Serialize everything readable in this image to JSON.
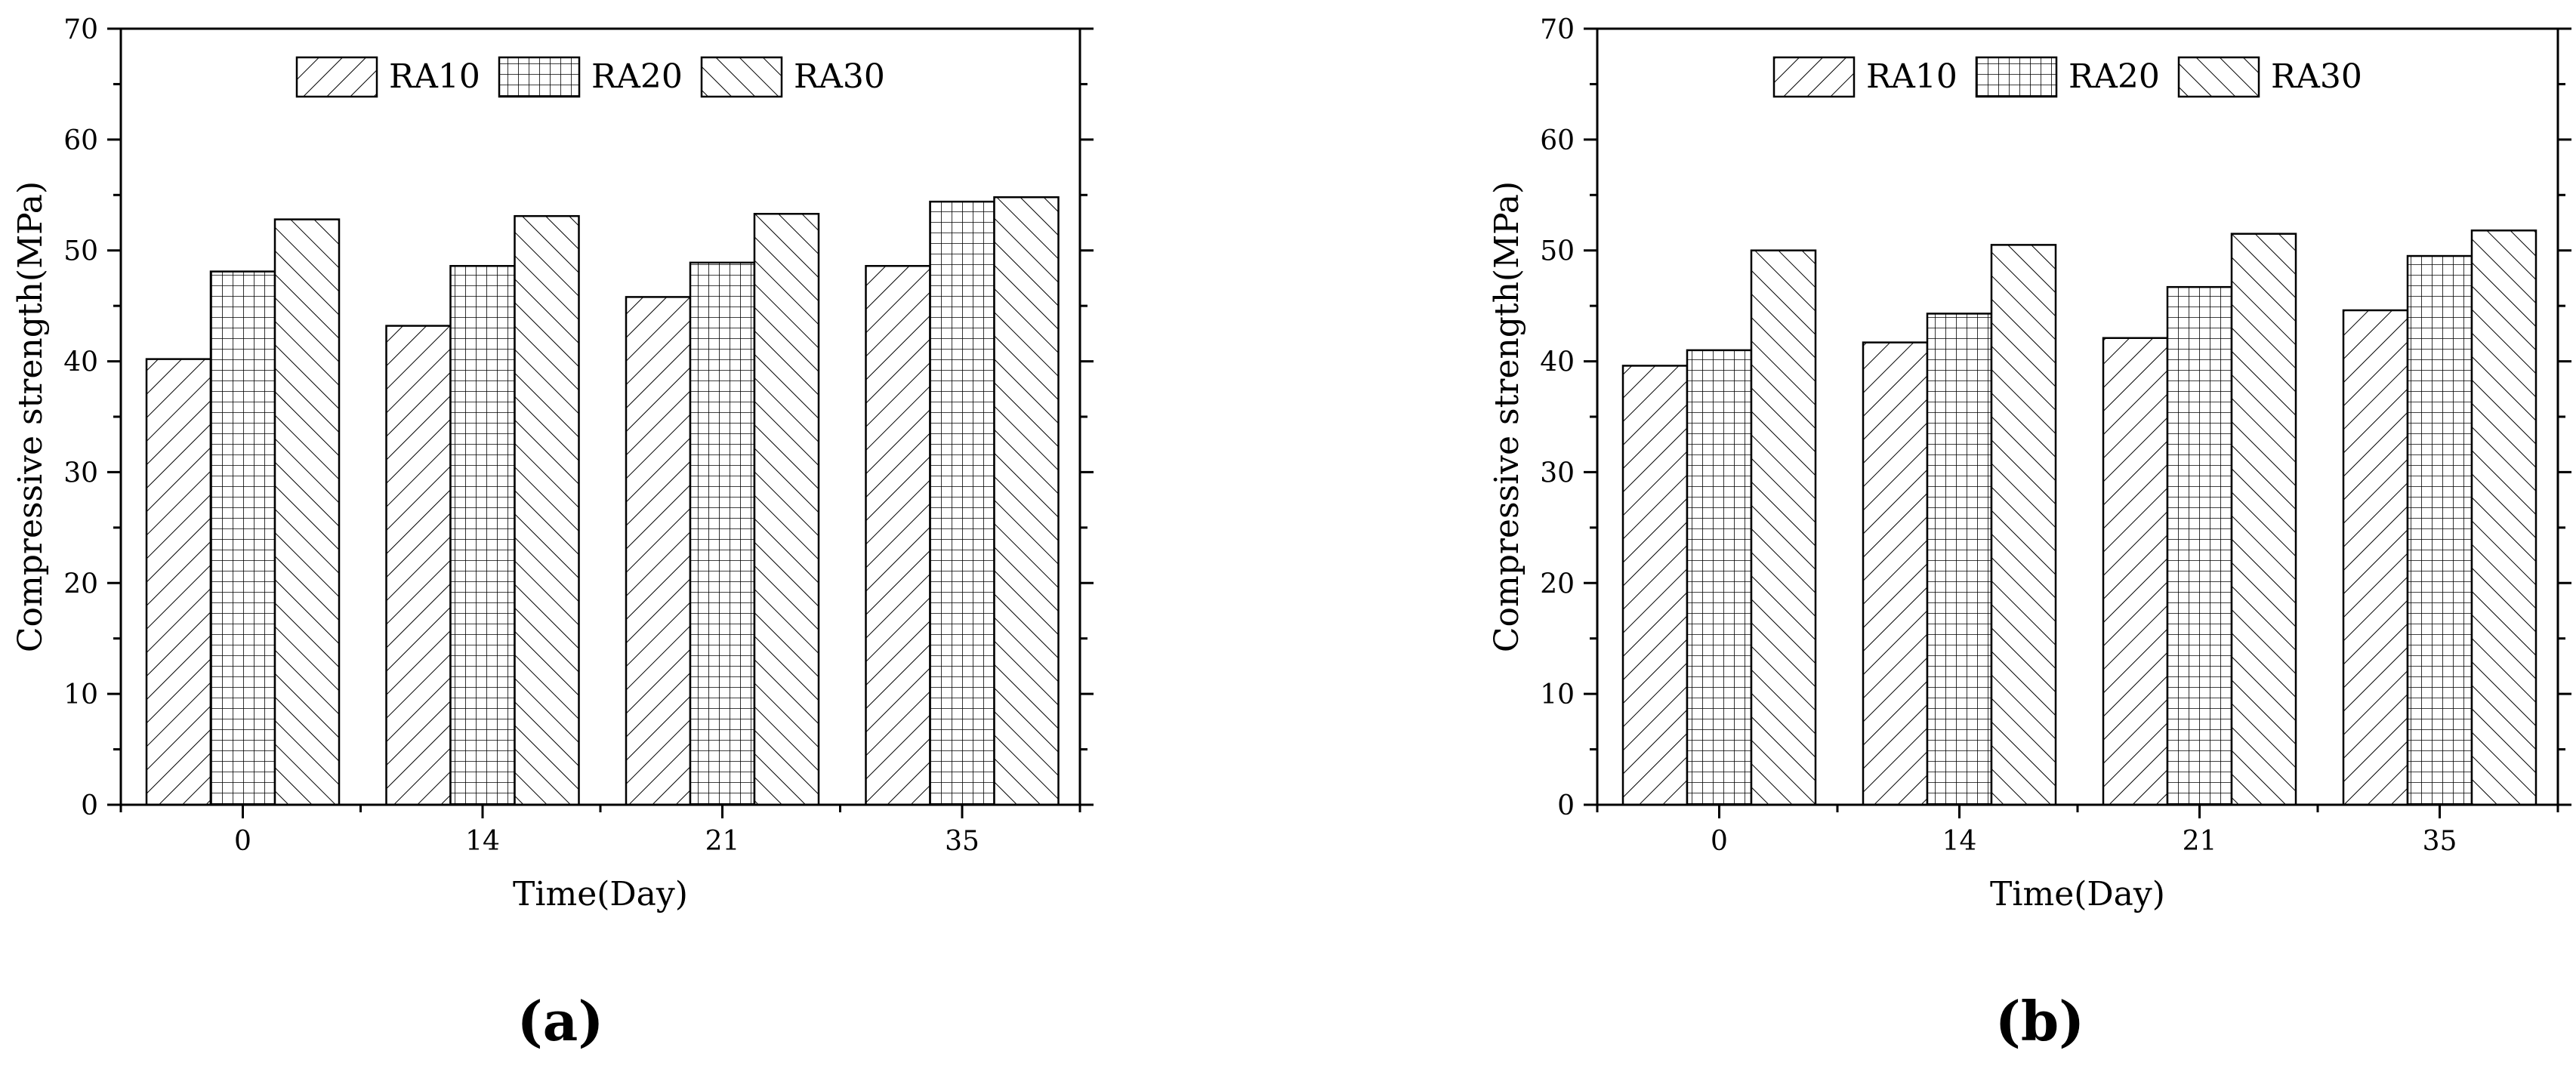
{
  "colors": {
    "ink": "#000000",
    "background": "#ffffff"
  },
  "chart_data": [
    {
      "type": "bar",
      "panel_label": "(a)",
      "categories": [
        "0",
        "14",
        "21",
        "35"
      ],
      "series": [
        {
          "name": "RA10",
          "pattern": "diagonal-up-hatch",
          "values": [
            40.2,
            43.2,
            45.8,
            48.6
          ]
        },
        {
          "name": "RA20",
          "pattern": "grid-crosshatch",
          "values": [
            48.1,
            48.6,
            48.9,
            54.4
          ]
        },
        {
          "name": "RA30",
          "pattern": "diagonal-down-hatch",
          "values": [
            52.8,
            53.1,
            53.3,
            54.8
          ]
        }
      ],
      "xlabel": "Time(Day)",
      "ylabel": "Compressive strength(MPa)",
      "ylim": [
        0,
        70
      ],
      "yticks": [
        "0",
        "10",
        "20",
        "30",
        "40",
        "50",
        "60",
        "70"
      ],
      "legend": "top-center",
      "grid": false
    },
    {
      "type": "bar",
      "panel_label": "(b)",
      "categories": [
        "0",
        "14",
        "21",
        "35"
      ],
      "series": [
        {
          "name": "RA10",
          "pattern": "diagonal-up-hatch",
          "values": [
            39.6,
            41.7,
            42.1,
            44.6
          ]
        },
        {
          "name": "RA20",
          "pattern": "grid-crosshatch",
          "values": [
            41.0,
            44.3,
            46.7,
            49.5
          ]
        },
        {
          "name": "RA30",
          "pattern": "diagonal-down-hatch",
          "values": [
            50.0,
            50.5,
            51.5,
            51.8
          ]
        }
      ],
      "xlabel": "Time(Day)",
      "ylabel": "Compressive strength(MPa)",
      "ylim": [
        0,
        70
      ],
      "yticks": [
        "0",
        "10",
        "20",
        "30",
        "40",
        "50",
        "60",
        "70"
      ],
      "legend": "top-center",
      "grid": false
    }
  ]
}
